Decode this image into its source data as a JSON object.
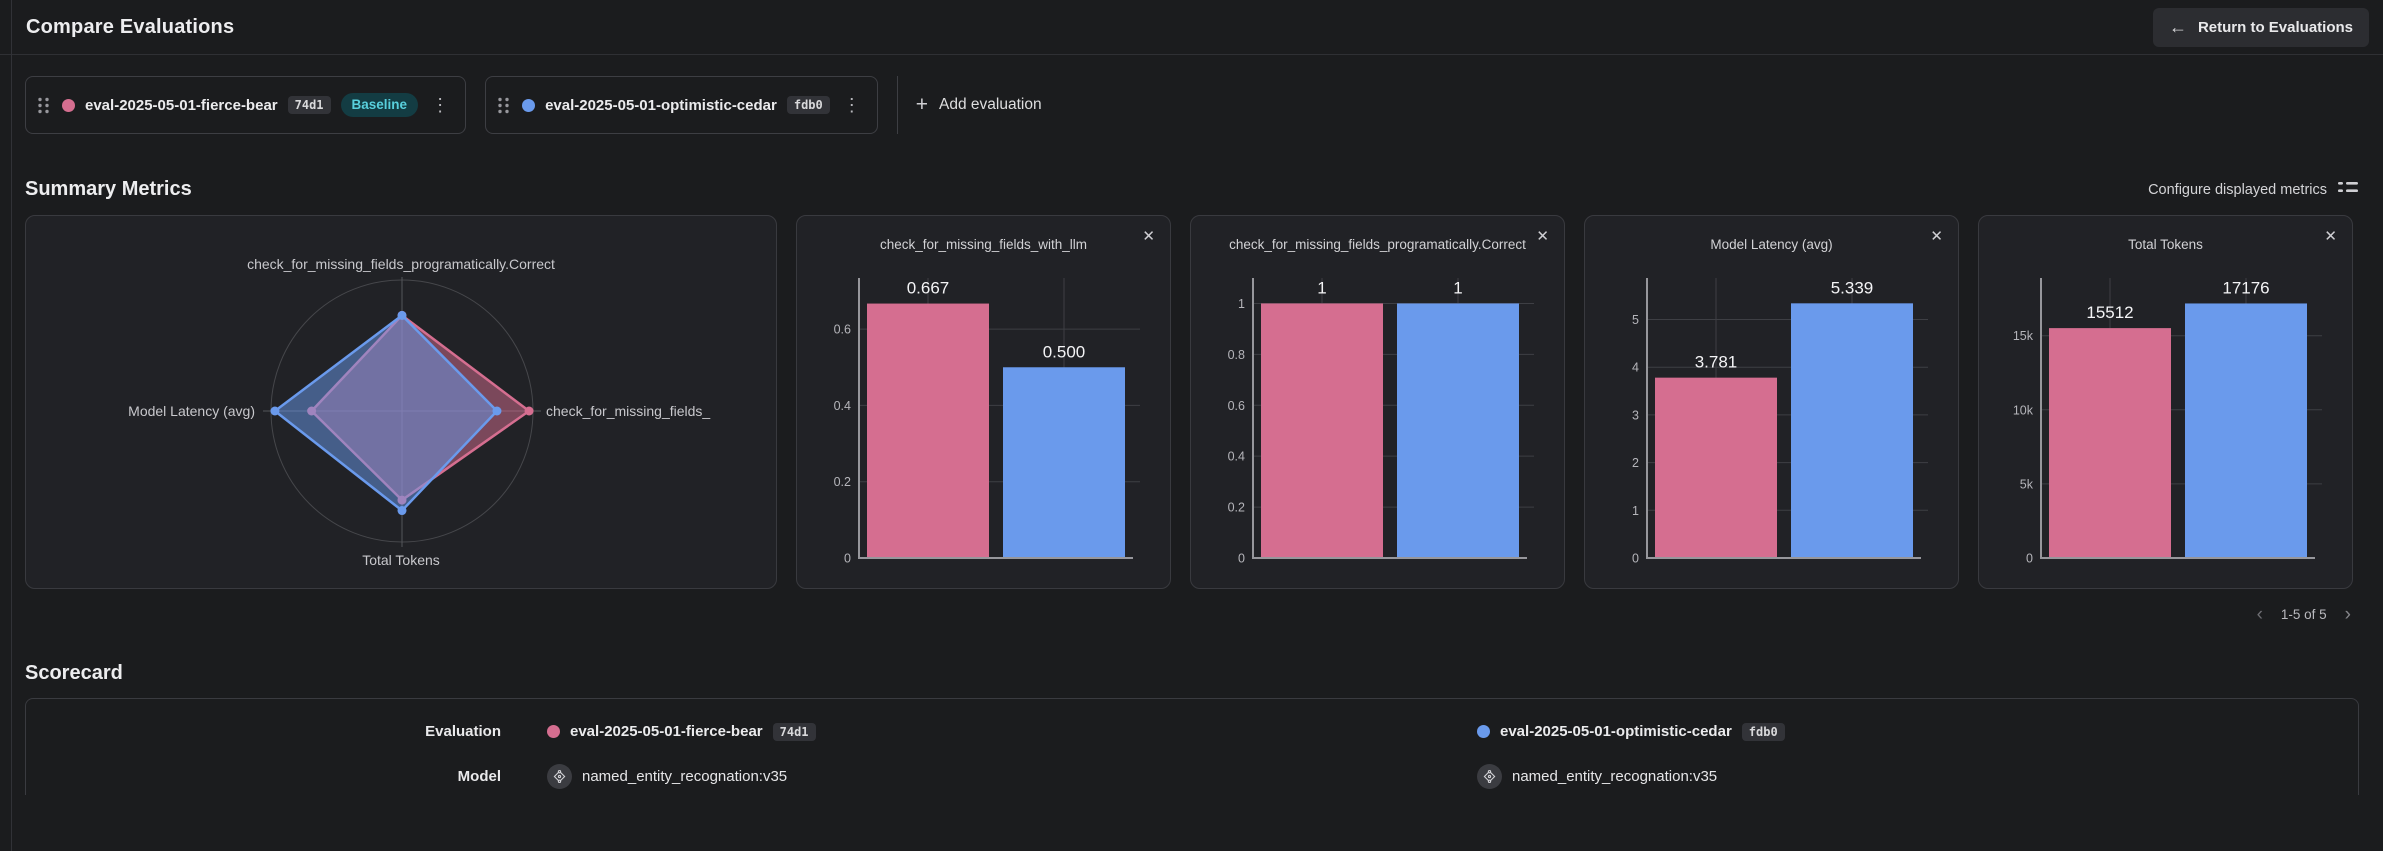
{
  "colors": {
    "series": [
      "#d56e90",
      "#6a9aec"
    ],
    "baseline_badge_bg": "#133c43",
    "baseline_badge_text": "#58cfdc",
    "grid": "#3e3f44",
    "axis": "#97979c"
  },
  "icons": {
    "back_arrow": "←",
    "kebab": "⋮",
    "plus": "+",
    "close": "✕",
    "chevron_left": "‹",
    "chevron_right": "›"
  },
  "header": {
    "title": "Compare Evaluations",
    "return_button": "Return to Evaluations"
  },
  "evaluation_bar": {
    "evaluations": [
      {
        "name": "eval-2025-05-01-fierce-bear",
        "hash": "74d1",
        "baseline_label": "Baseline"
      },
      {
        "name": "eval-2025-05-01-optimistic-cedar",
        "hash": "fdb0"
      }
    ],
    "add_button": "Add evaluation"
  },
  "summary": {
    "title": "Summary Metrics",
    "configure_button": "Configure displayed metrics",
    "pagination": "1-5 of 5"
  },
  "chart_data": [
    {
      "type": "radar",
      "axes": [
        "check_for_missing_fields_programatically.Correct",
        "check_for_missing_fields_",
        "Total Tokens",
        "Model Latency (avg)"
      ],
      "series": [
        {
          "name": "eval-2025-05-01-fierce-bear",
          "values": [
            1,
            0.667,
            15512,
            3.781
          ],
          "plot_radii": [
            0.73,
            0.97,
            0.68,
            0.69
          ]
        },
        {
          "name": "eval-2025-05-01-optimistic-cedar",
          "values": [
            1,
            0.5,
            17176,
            5.339
          ],
          "plot_radii": [
            0.73,
            0.725,
            0.76,
            0.97
          ]
        }
      ]
    },
    {
      "type": "bar",
      "title": "check_for_missing_fields_with_llm",
      "series": [
        "eval-2025-05-01-fierce-bear",
        "eval-2025-05-01-optimistic-cedar"
      ],
      "values": [
        0.667,
        0.5
      ],
      "labels": [
        "0.667",
        "0.500"
      ],
      "ymax": 0.734,
      "ticks": [
        {
          "v": 0,
          "label": "0"
        },
        {
          "v": 0.2,
          "label": "0.2"
        },
        {
          "v": 0.4,
          "label": "0.4"
        },
        {
          "v": 0.6,
          "label": "0.6"
        }
      ]
    },
    {
      "type": "bar",
      "title": "check_for_missing_fields_programatically.Correct",
      "series": [
        "eval-2025-05-01-fierce-bear",
        "eval-2025-05-01-optimistic-cedar"
      ],
      "values": [
        1,
        1
      ],
      "labels": [
        "1",
        "1"
      ],
      "ymax": 1.1,
      "ticks": [
        {
          "v": 0,
          "label": "0"
        },
        {
          "v": 0.2,
          "label": "0.2"
        },
        {
          "v": 0.4,
          "label": "0.4"
        },
        {
          "v": 0.6,
          "label": "0.6"
        },
        {
          "v": 0.8,
          "label": "0.8"
        },
        {
          "v": 1,
          "label": "1"
        }
      ]
    },
    {
      "type": "bar",
      "title": "Model Latency (avg)",
      "series": [
        "eval-2025-05-01-fierce-bear",
        "eval-2025-05-01-optimistic-cedar"
      ],
      "values": [
        3.781,
        5.339
      ],
      "labels": [
        "3.781",
        "5.339"
      ],
      "ymax": 5.87,
      "ticks": [
        {
          "v": 0,
          "label": "0"
        },
        {
          "v": 1,
          "label": "1"
        },
        {
          "v": 2,
          "label": "2"
        },
        {
          "v": 3,
          "label": "3"
        },
        {
          "v": 4,
          "label": "4"
        },
        {
          "v": 5,
          "label": "5"
        }
      ]
    },
    {
      "type": "bar",
      "title": "Total Tokens",
      "series": [
        "eval-2025-05-01-fierce-bear",
        "eval-2025-05-01-optimistic-cedar"
      ],
      "values": [
        15512,
        17176
      ],
      "labels": [
        "15512",
        "17176"
      ],
      "ymax": 18894,
      "ticks": [
        {
          "v": 0,
          "label": "0"
        },
        {
          "v": 5000,
          "label": "5k"
        },
        {
          "v": 10000,
          "label": "10k"
        },
        {
          "v": 15000,
          "label": "15k"
        }
      ]
    }
  ],
  "scorecard": {
    "title": "Scorecard",
    "rows": [
      {
        "label": "Evaluation",
        "values": [
          {
            "name": "eval-2025-05-01-fierce-bear",
            "hash": "74d1"
          },
          {
            "name": "eval-2025-05-01-optimistic-cedar",
            "hash": "fdb0"
          }
        ]
      },
      {
        "label": "Model",
        "values": [
          {
            "name": "named_entity_recognation:v35"
          },
          {
            "name": "named_entity_recognation:v35"
          }
        ]
      }
    ]
  }
}
